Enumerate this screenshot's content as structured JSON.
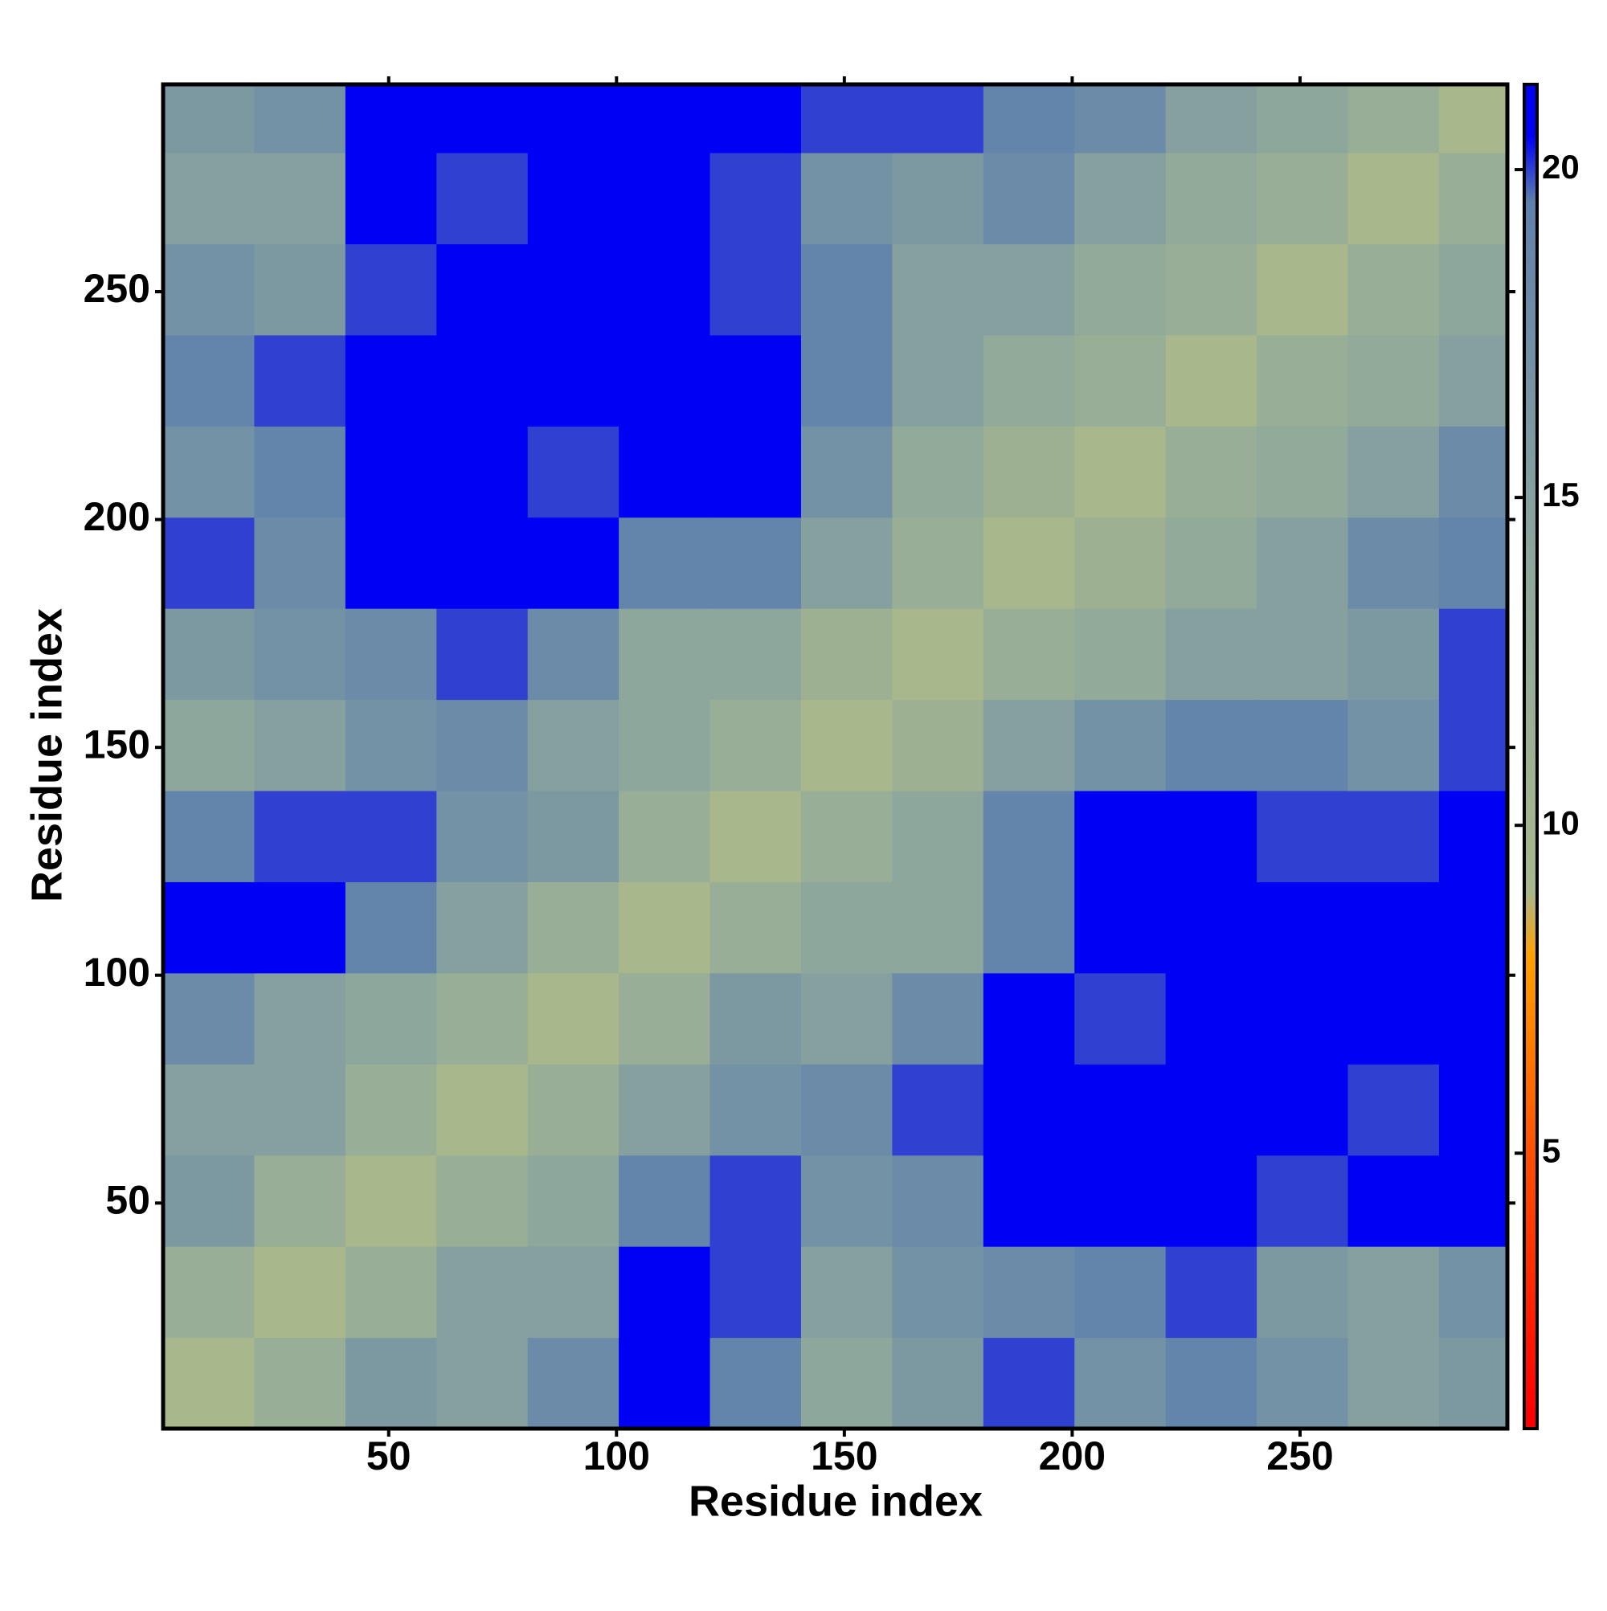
{
  "chart_data": {
    "type": "heatmap",
    "x_title": "Residue index",
    "y_title": "Residue index",
    "xbins": [
      0.5,
      20.5,
      40.5,
      60.5,
      80.5,
      100.5,
      120.5,
      140.5,
      160.5,
      180.5,
      200.5,
      220.5,
      240.5,
      260.5,
      280.5,
      295.5
    ],
    "ybins": [
      0.5,
      20.5,
      40.5,
      60.5,
      80.5,
      100.5,
      120.5,
      140.5,
      160.5,
      180.5,
      200.5,
      220.5,
      240.5,
      260.5,
      280.5,
      295.5
    ],
    "z": [
      [
        9,
        12,
        16,
        15,
        18,
        21,
        19,
        14,
        16,
        20,
        17,
        19,
        17,
        15,
        16
      ],
      [
        12,
        9,
        12,
        15,
        15,
        21,
        20,
        15,
        17,
        18,
        19,
        20,
        16,
        15,
        17
      ],
      [
        16,
        12,
        9,
        12,
        14,
        19,
        20,
        17,
        18,
        21,
        21,
        21,
        20,
        21,
        21
      ],
      [
        15,
        15,
        12,
        9,
        12,
        15,
        17,
        18,
        20,
        21,
        21,
        21,
        21,
        20,
        21
      ],
      [
        18,
        15,
        14,
        12,
        9,
        12,
        16,
        15,
        18,
        21,
        20,
        21,
        21,
        21,
        21
      ],
      [
        21,
        21,
        19,
        15,
        12,
        9,
        12,
        14,
        14,
        19,
        21,
        21,
        21,
        21,
        21
      ],
      [
        19,
        20,
        20,
        17,
        16,
        12,
        9,
        12,
        14,
        19,
        21,
        21,
        20,
        20,
        21
      ],
      [
        14,
        15,
        17,
        18,
        15,
        14,
        12,
        9,
        11,
        15,
        17,
        19,
        19,
        17,
        20
      ],
      [
        16,
        17,
        18,
        20,
        18,
        14,
        14,
        11,
        9,
        12,
        13,
        15,
        15,
        16,
        20
      ],
      [
        20,
        18,
        21,
        21,
        21,
        19,
        19,
        15,
        12,
        9,
        11,
        13,
        15,
        18,
        19
      ],
      [
        17,
        19,
        21,
        21,
        20,
        21,
        21,
        17,
        13,
        11,
        9,
        12,
        13,
        15,
        18
      ],
      [
        19,
        20,
        21,
        21,
        21,
        21,
        21,
        19,
        15,
        13,
        12,
        9,
        12,
        13,
        15
      ],
      [
        17,
        16,
        20,
        21,
        21,
        21,
        20,
        19,
        15,
        15,
        13,
        12,
        9,
        12,
        14
      ],
      [
        15,
        15,
        21,
        20,
        21,
        21,
        20,
        17,
        16,
        18,
        15,
        13,
        12,
        9,
        12
      ],
      [
        16,
        17,
        21,
        21,
        21,
        21,
        21,
        20,
        20,
        19,
        18,
        15,
        14,
        12,
        9
      ]
    ],
    "xlim": [
      0.5,
      295.5
    ],
    "ylim": [
      0.5,
      295.5
    ],
    "xticks": [
      50,
      100,
      150,
      200,
      250
    ],
    "yticks": [
      50,
      100,
      150,
      200,
      250
    ],
    "zlim": [
      0.8,
      21.3
    ],
    "zticks": [
      5,
      10,
      15,
      20
    ],
    "colorscale": [
      [
        1,
        "#ff0000"
      ],
      [
        5,
        "#ff5000"
      ],
      [
        8,
        "#ffa000"
      ],
      [
        9,
        "#a8b88c"
      ],
      [
        14,
        "#8da79c"
      ],
      [
        19.5,
        "#5f80ac"
      ],
      [
        20.5,
        "#0000f5"
      ]
    ]
  }
}
